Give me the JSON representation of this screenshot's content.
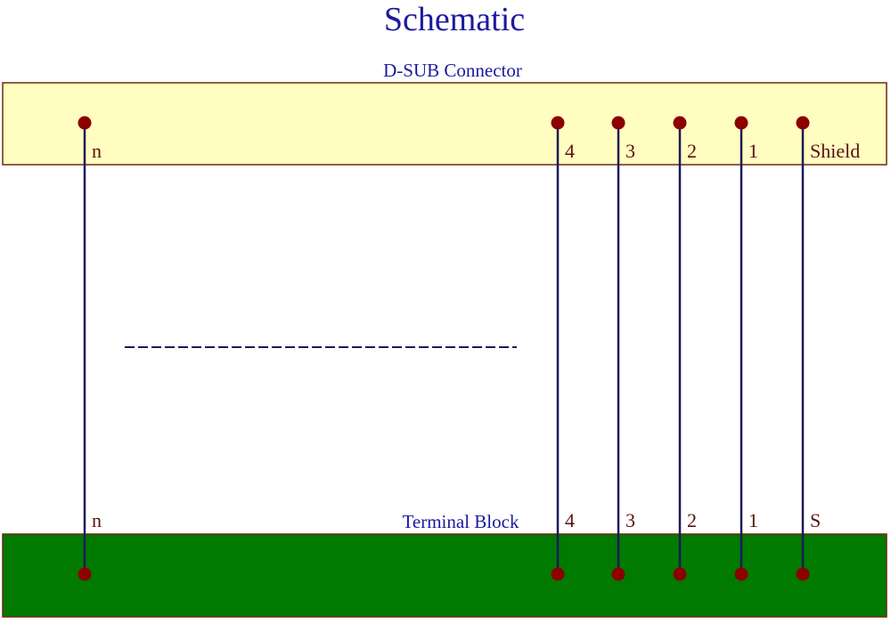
{
  "title": "Schematic",
  "connector": {
    "label": "D-SUB Connector",
    "fill": "#FFFDC0"
  },
  "terminal_block": {
    "label": "Terminal Block",
    "fill": "#007A00"
  },
  "colors": {
    "title": "#1A1AA0",
    "pin_label": "#5A1010",
    "dot": "#8B0000",
    "wire": "#1A1A5A",
    "border": "#6B2A10"
  },
  "pins": [
    {
      "top": "n",
      "bottom": "n"
    },
    {
      "top": "4",
      "bottom": "4"
    },
    {
      "top": "3",
      "bottom": "3"
    },
    {
      "top": "2",
      "bottom": "2"
    },
    {
      "top": "1",
      "bottom": "1"
    },
    {
      "top": "Shield",
      "bottom": "S"
    }
  ]
}
